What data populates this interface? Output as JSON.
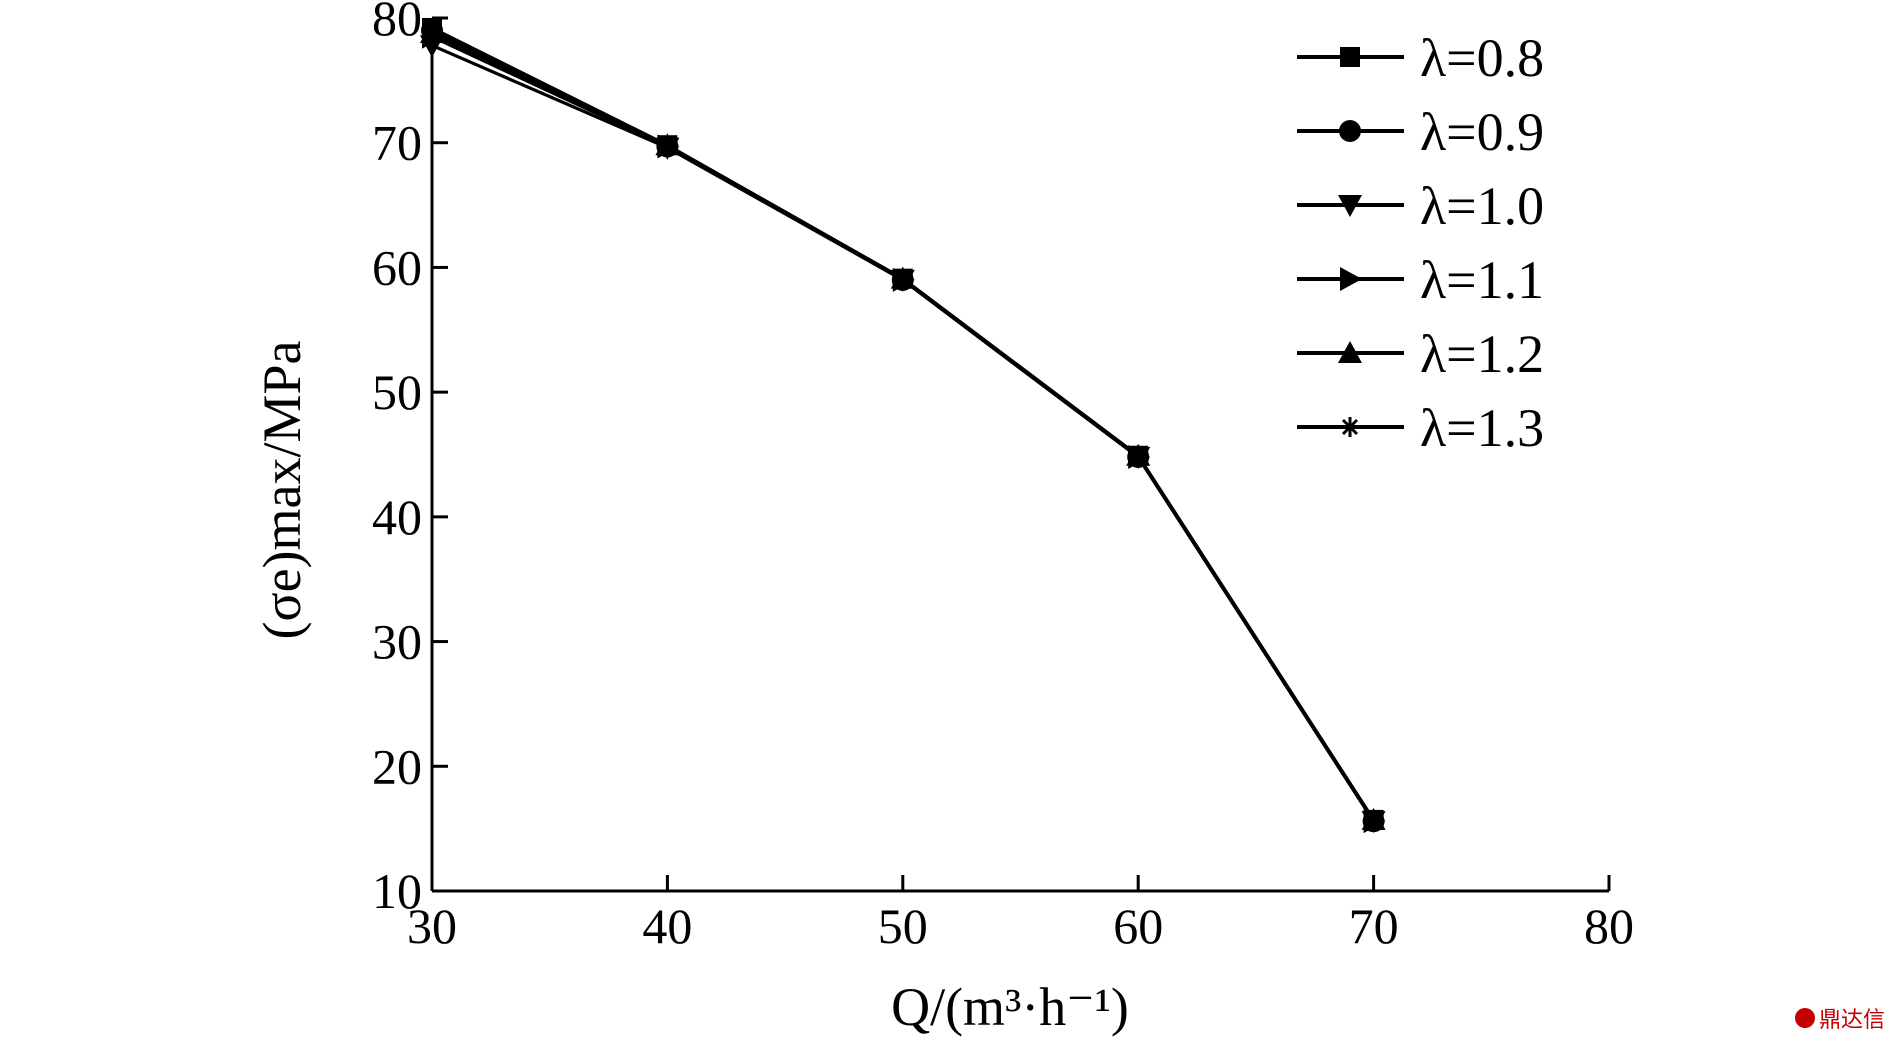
{
  "chart_data": {
    "type": "line",
    "xlabel": "Q/(m³·h⁻¹)",
    "ylabel": "(σe)max/MPa",
    "xlim": [
      30,
      80
    ],
    "ylim": [
      10,
      80
    ],
    "xticks": [
      "30",
      "40",
      "50",
      "60",
      "70",
      "80"
    ],
    "yticks": [
      "10",
      "20",
      "30",
      "40",
      "50",
      "60",
      "70",
      "80"
    ],
    "legend_position": "top-right",
    "x": [
      30,
      40,
      50,
      60,
      70
    ],
    "series": [
      {
        "name": "λ=0.8",
        "marker": "square",
        "values": [
          79.2,
          69.8,
          59.1,
          44.9,
          15.7
        ]
      },
      {
        "name": "λ=0.9",
        "marker": "circle",
        "values": [
          79.0,
          69.7,
          59.0,
          44.8,
          15.6
        ]
      },
      {
        "name": "λ=1.0",
        "marker": "triangle-down",
        "values": [
          77.8,
          69.6,
          59.0,
          44.8,
          15.6
        ]
      },
      {
        "name": "λ=1.1",
        "marker": "triangle-right",
        "values": [
          78.5,
          69.7,
          59.0,
          44.8,
          15.6
        ]
      },
      {
        "name": "λ=1.2",
        "marker": "triangle-up",
        "values": [
          78.8,
          69.8,
          59.1,
          44.9,
          15.7
        ]
      },
      {
        "name": "λ=1.3",
        "marker": "star",
        "values": [
          78.6,
          69.7,
          59.0,
          44.8,
          15.6
        ]
      }
    ]
  },
  "watermark": {
    "text": "鼎达信"
  }
}
